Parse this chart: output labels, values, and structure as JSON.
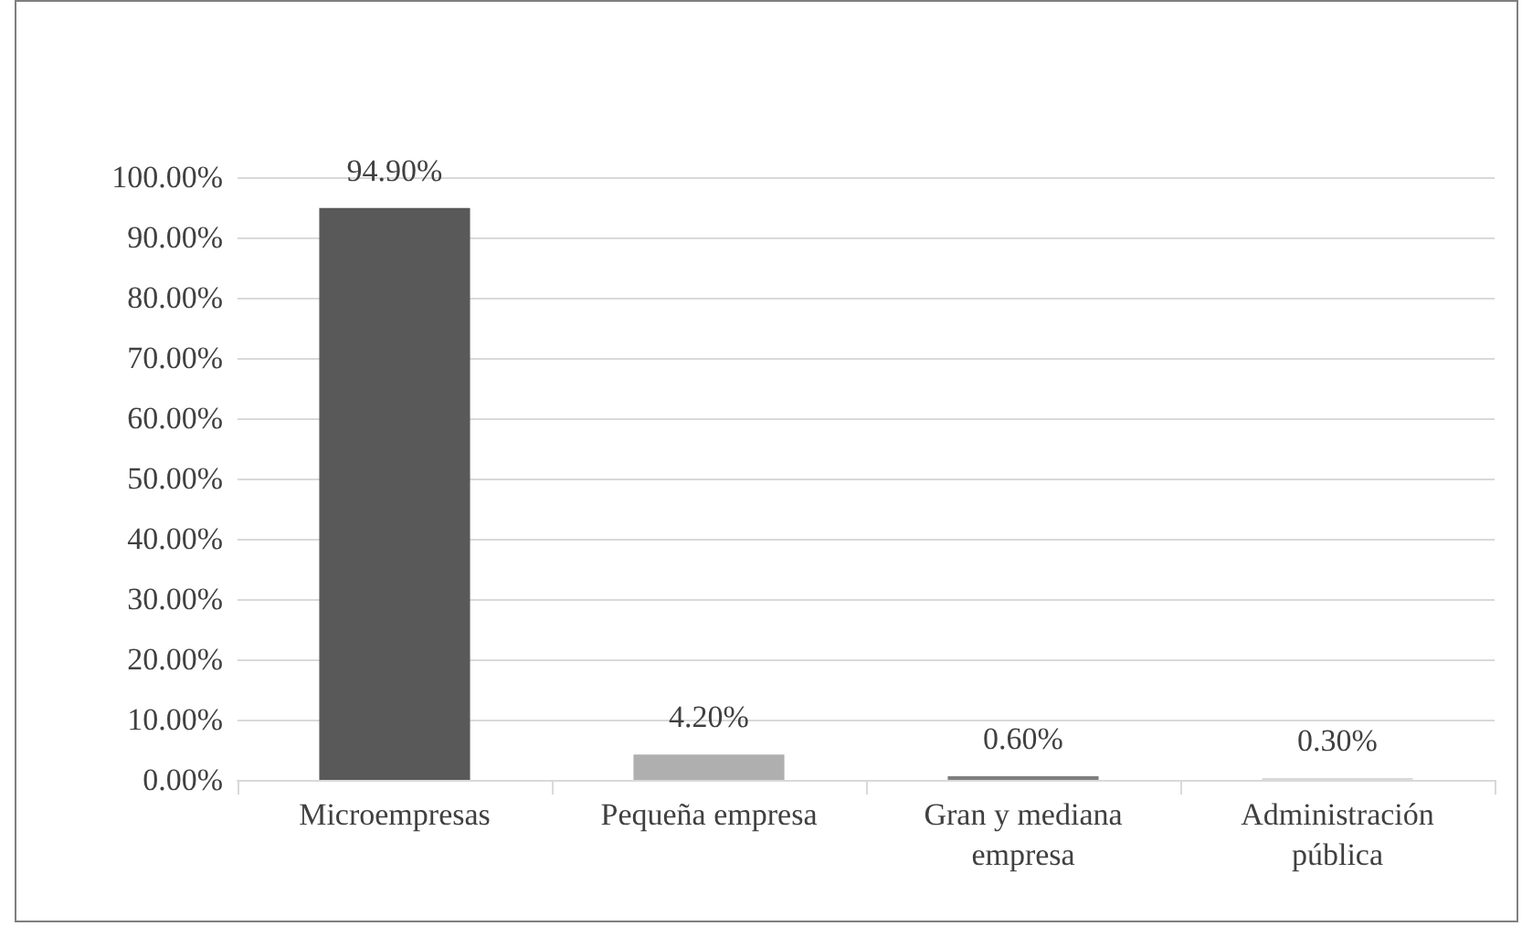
{
  "chart_data": {
    "type": "bar",
    "categories": [
      "Microempresas",
      "Pequeña empresa",
      "Gran y mediana empresa",
      "Administración pública"
    ],
    "values": [
      94.9,
      4.2,
      0.6,
      0.3
    ],
    "colors": [
      "#595959",
      "#afafaf",
      "#7f7f7f",
      "#d9d9d9"
    ],
    "value_labels": [
      "94.90%",
      "4.20%",
      "0.60%",
      "0.30%"
    ],
    "ylim": [
      0,
      100
    ],
    "yticks": [
      {
        "value": 0,
        "label": "0.00%"
      },
      {
        "value": 10,
        "label": "10.00%"
      },
      {
        "value": 20,
        "label": "20.00%"
      },
      {
        "value": 30,
        "label": "30.00%"
      },
      {
        "value": 40,
        "label": "40.00%"
      },
      {
        "value": 50,
        "label": "50.00%"
      },
      {
        "value": 60,
        "label": "60.00%"
      },
      {
        "value": 70,
        "label": "70.00%"
      },
      {
        "value": 80,
        "label": "80.00%"
      },
      {
        "value": 90,
        "label": "90.00%"
      },
      {
        "value": 100,
        "label": "100.00%"
      }
    ],
    "grid": "y"
  }
}
